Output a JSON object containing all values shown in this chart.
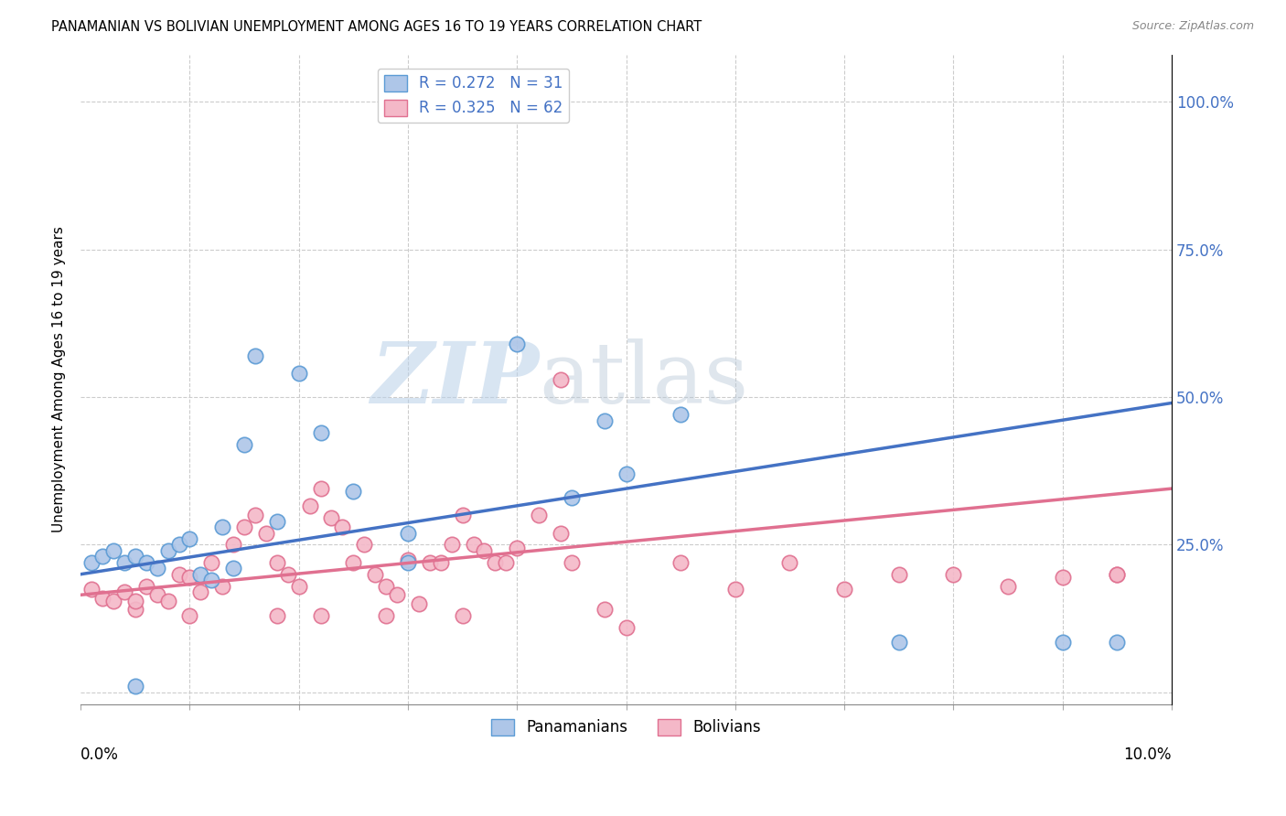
{
  "title": "PANAMANIAN VS BOLIVIAN UNEMPLOYMENT AMONG AGES 16 TO 19 YEARS CORRELATION CHART",
  "source": "Source: ZipAtlas.com",
  "ylabel": "Unemployment Among Ages 16 to 19 years",
  "xlim": [
    0.0,
    0.1
  ],
  "ylim": [
    -0.02,
    1.08
  ],
  "ytick_vals": [
    0.0,
    0.25,
    0.5,
    0.75,
    1.0
  ],
  "ytick_labels_right": [
    "",
    "25.0%",
    "50.0%",
    "75.0%",
    "100.0%"
  ],
  "pan_color_face": "#aec6e8",
  "pan_color_edge": "#5b9bd5",
  "bol_color_face": "#f4b8c8",
  "bol_color_edge": "#e07090",
  "trendline_pan_color": "#4472c4",
  "trendline_bol_color": "#e07090",
  "watermark": "ZIPatlas",
  "watermark_color": "#ccdaee",
  "pan_R": 0.272,
  "pan_N": 31,
  "bol_R": 0.325,
  "bol_N": 62,
  "pan_trend_x0": 0.0,
  "pan_trend_y0": 0.2,
  "pan_trend_x1": 0.1,
  "pan_trend_y1": 0.49,
  "bol_trend_x0": 0.0,
  "bol_trend_y0": 0.165,
  "bol_trend_x1": 0.1,
  "bol_trend_y1": 0.345,
  "pan_points_x": [
    0.001,
    0.002,
    0.003,
    0.004,
    0.005,
    0.006,
    0.007,
    0.008,
    0.009,
    0.01,
    0.011,
    0.012,
    0.013,
    0.014,
    0.015,
    0.016,
    0.018,
    0.02,
    0.022,
    0.025,
    0.03,
    0.04,
    0.045,
    0.05,
    0.055,
    0.075,
    0.09,
    0.095,
    0.03,
    0.048,
    0.005
  ],
  "pan_points_y": [
    0.22,
    0.23,
    0.24,
    0.22,
    0.23,
    0.22,
    0.21,
    0.24,
    0.25,
    0.26,
    0.2,
    0.19,
    0.28,
    0.21,
    0.42,
    0.57,
    0.29,
    0.54,
    0.44,
    0.34,
    0.22,
    0.59,
    0.33,
    0.37,
    0.47,
    0.085,
    0.085,
    0.085,
    0.27,
    0.46,
    0.01
  ],
  "bol_points_x": [
    0.001,
    0.002,
    0.003,
    0.004,
    0.005,
    0.006,
    0.007,
    0.008,
    0.009,
    0.01,
    0.011,
    0.012,
    0.013,
    0.014,
    0.015,
    0.016,
    0.017,
    0.018,
    0.019,
    0.02,
    0.021,
    0.022,
    0.023,
    0.024,
    0.025,
    0.026,
    0.027,
    0.028,
    0.029,
    0.03,
    0.031,
    0.032,
    0.033,
    0.034,
    0.035,
    0.036,
    0.037,
    0.038,
    0.039,
    0.04,
    0.042,
    0.044,
    0.045,
    0.048,
    0.05,
    0.055,
    0.06,
    0.065,
    0.07,
    0.075,
    0.08,
    0.085,
    0.09,
    0.095,
    0.005,
    0.01,
    0.018,
    0.022,
    0.028,
    0.035,
    0.044,
    0.095
  ],
  "bol_points_y": [
    0.175,
    0.16,
    0.155,
    0.17,
    0.14,
    0.18,
    0.165,
    0.155,
    0.2,
    0.195,
    0.17,
    0.22,
    0.18,
    0.25,
    0.28,
    0.3,
    0.27,
    0.22,
    0.2,
    0.18,
    0.315,
    0.345,
    0.295,
    0.28,
    0.22,
    0.25,
    0.2,
    0.18,
    0.165,
    0.225,
    0.15,
    0.22,
    0.22,
    0.25,
    0.3,
    0.25,
    0.24,
    0.22,
    0.22,
    0.245,
    0.3,
    0.27,
    0.22,
    0.14,
    0.11,
    0.22,
    0.175,
    0.22,
    0.175,
    0.2,
    0.2,
    0.18,
    0.195,
    0.2,
    0.155,
    0.13,
    0.13,
    0.13,
    0.13,
    0.13,
    0.53,
    0.2
  ]
}
